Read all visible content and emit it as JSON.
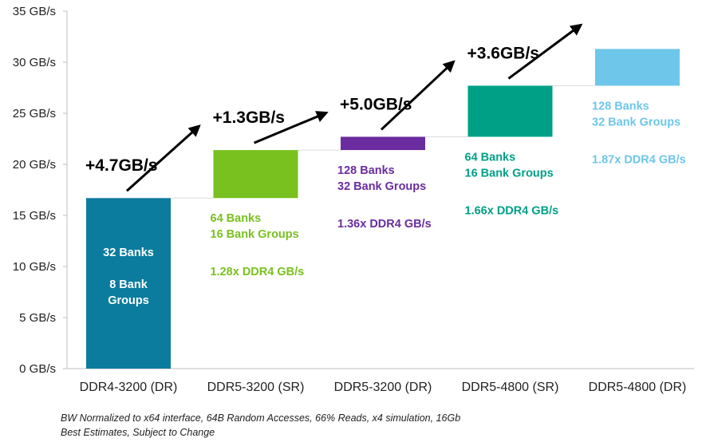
{
  "chart_data": {
    "type": "bar",
    "subtype": "waterfall",
    "categories": [
      "DDR4-3200 (DR)",
      "DDR5-3200 (SR)",
      "DDR5-3200 (DR)",
      "DDR5-4800 (SR)",
      "DDR5-4800 (DR)"
    ],
    "values": [
      16.7,
      21.4,
      22.7,
      27.7,
      31.3
    ],
    "bar_bottoms": [
      0,
      16.7,
      21.4,
      22.7,
      27.7
    ],
    "colors": [
      "#0b7c9e",
      "#79c11f",
      "#6a2c9e",
      "#00a087",
      "#6ec6ea"
    ],
    "ylim": [
      0,
      35
    ],
    "yticks": [
      "0 GB/s",
      "5 GB/s",
      "10 GB/s",
      "15 GB/s",
      "20 GB/s",
      "25 GB/s",
      "30 GB/s",
      "35 GB/s"
    ],
    "ytick_values": [
      0,
      5,
      10,
      15,
      20,
      25,
      30,
      35
    ],
    "grid": false,
    "deltas": [
      "+4.7GB/s",
      "+1.3GB/s",
      "+5.0GB/s",
      "+3.6GB/s"
    ],
    "annotations": [
      {
        "lines": [
          "32 Banks",
          "",
          "8 Bank",
          "Groups"
        ],
        "color": "#ffffff"
      },
      {
        "lines": [
          "64 Banks",
          "16 Bank Groups",
          "",
          "1.28x DDR4 GB/s"
        ],
        "color": "#79c11f"
      },
      {
        "lines": [
          "128 Banks",
          "32 Bank Groups",
          "",
          "1.36x DDR4 GB/s"
        ],
        "color": "#6a2c9e"
      },
      {
        "lines": [
          "64 Banks",
          "16 Bank Groups",
          "",
          "1.66x DDR4 GB/s"
        ],
        "color": "#00a087"
      },
      {
        "lines": [
          "128 Banks",
          "32 Bank Groups",
          "",
          "1.87x DDR4 GB/s"
        ],
        "color": "#6ec6ea"
      }
    ]
  },
  "footnotes": [
    "BW Normalized to x64 interface, 64B Random Accesses, 66% Reads, x4 simulation, 16Gb",
    "Best Estimates, Subject to Change"
  ]
}
